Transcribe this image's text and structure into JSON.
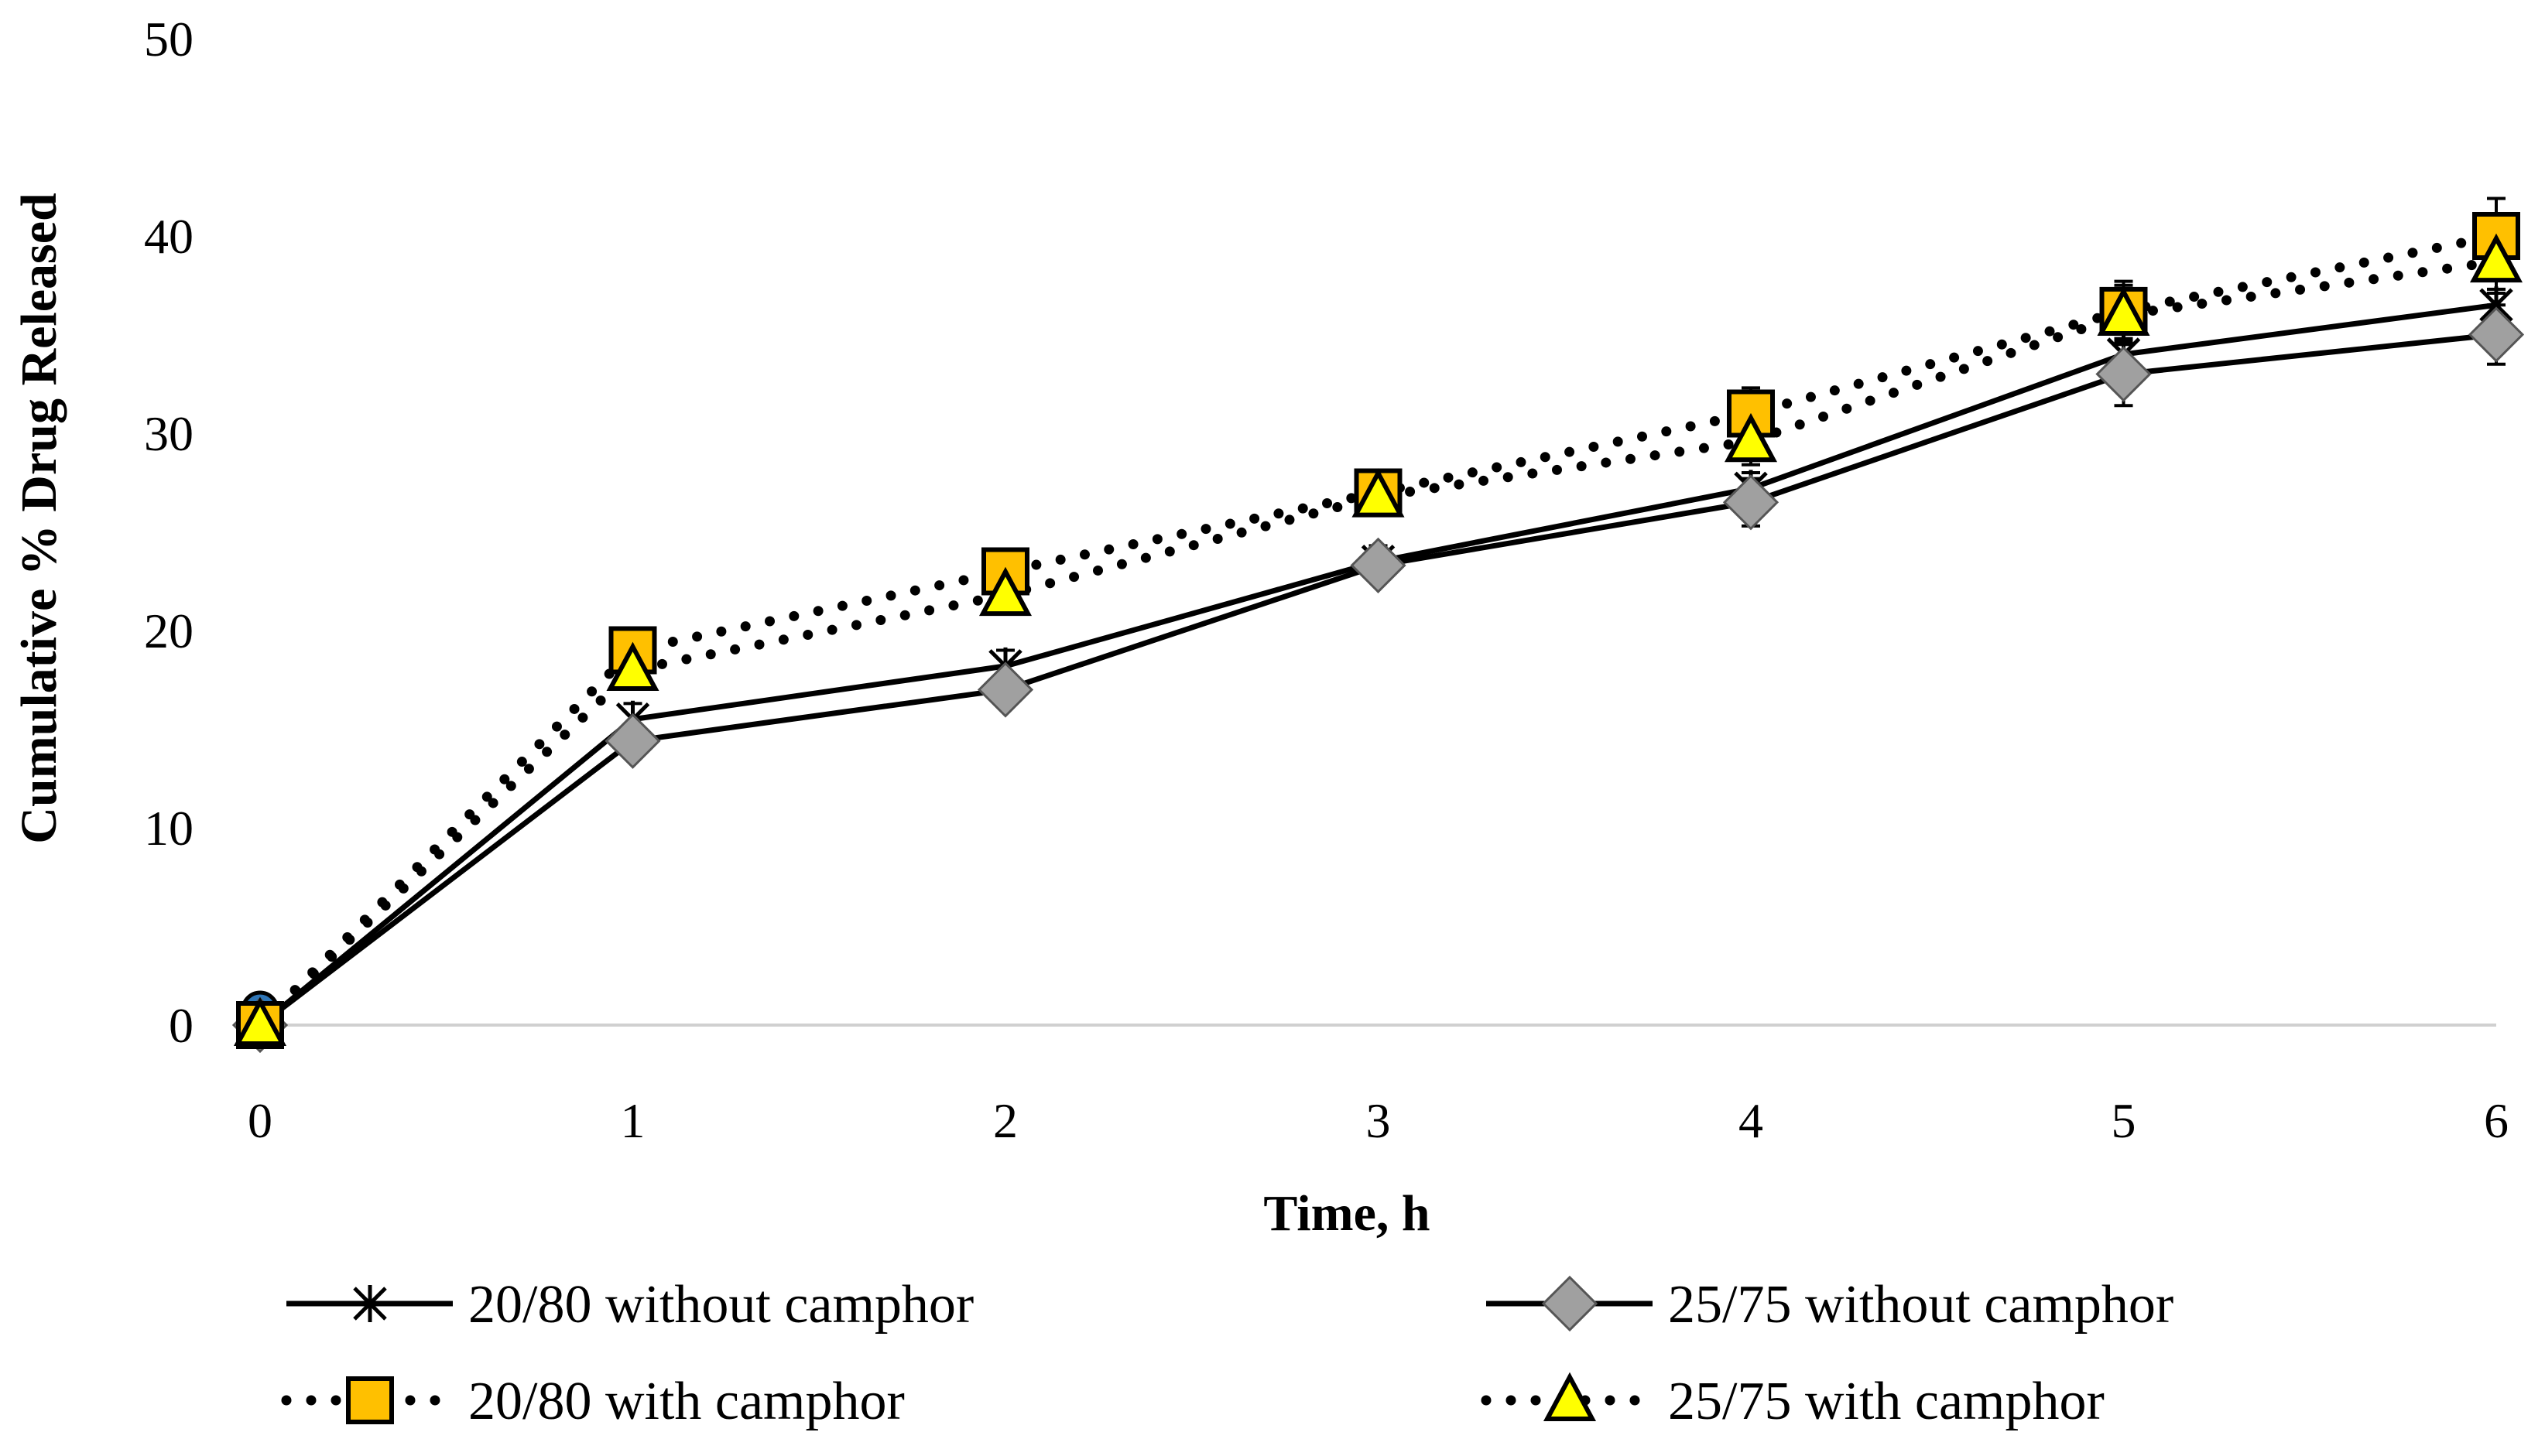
{
  "chart_data": {
    "type": "line",
    "title": "",
    "xlabel": "Time, h",
    "ylabel": "Cumulative % Drug Released",
    "x": [
      0,
      1,
      2,
      3,
      4,
      5,
      6
    ],
    "xlim": [
      0,
      6
    ],
    "ylim": [
      0,
      50
    ],
    "yticks": [
      0,
      10,
      20,
      30,
      40,
      50
    ],
    "xticks": [
      0,
      1,
      2,
      3,
      4,
      5,
      6
    ],
    "grid": false,
    "legend_position": "bottom",
    "series": [
      {
        "name": "20/80 without camphor",
        "marker": "star",
        "line": "solid",
        "color": "#000000",
        "fill": "#000000",
        "values": [
          0,
          15.5,
          18.2,
          23.5,
          27.2,
          34,
          36.5
        ],
        "errors": [
          0.3,
          0.8,
          0.8,
          0.8,
          0.8,
          0.8,
          0.8
        ]
      },
      {
        "name": "25/75 without camphor",
        "marker": "diamond",
        "line": "solid",
        "color": "#000000",
        "fill": "#a0a0a0",
        "values": [
          0,
          14.4,
          17,
          23.3,
          26.5,
          33,
          35
        ],
        "errors": [
          0.3,
          0.8,
          0.8,
          0.8,
          1.2,
          1.6,
          1.5
        ]
      },
      {
        "name": "20/80 with camphor",
        "marker": "square",
        "line": "dotted",
        "color": "#000000",
        "fill": "#ffc000",
        "values": [
          0,
          19,
          23,
          27,
          31,
          36.2,
          40
        ],
        "errors": [
          0.3,
          0.8,
          0.8,
          0.9,
          1.3,
          1.5,
          1.9
        ]
      },
      {
        "name": "25/75 with camphor",
        "marker": "triangle",
        "line": "dotted",
        "color": "#000000",
        "fill": "#ffff00",
        "values": [
          0,
          18,
          21.8,
          26.8,
          29.6,
          36,
          38.7
        ],
        "errors": [
          0.3,
          0.8,
          0.8,
          0.9,
          1.2,
          1.5,
          1.6
        ]
      }
    ]
  }
}
